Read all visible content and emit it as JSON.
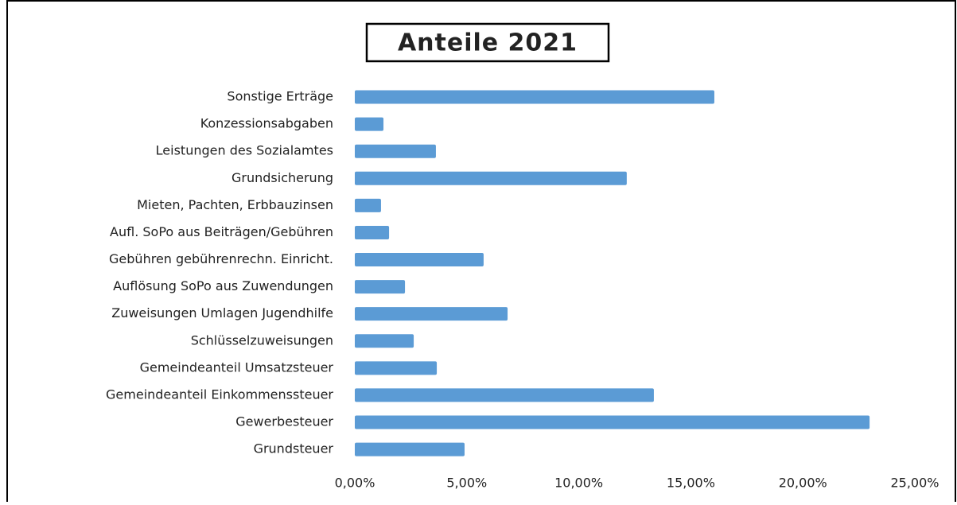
{
  "chart_data": {
    "type": "barh",
    "title": "Anteile 2021",
    "categories": [
      "Sonstige Erträge",
      "Konzessionsabgaben",
      "Leistungen des Sozialamtes",
      "Grundsicherung",
      "Mieten, Pachten, Erbbauzinsen",
      "Aufl. SoPo aus Beiträgen/Gebühren",
      "Gebühren gebührenrechn. Einricht.",
      "Auflösung SoPo aus Zuwendungen",
      "Zuweisungen Umlagen Jugendhilfe",
      "Schlüsselzuweisungen",
      "Gemeindeanteil Umsatzsteuer",
      "Gemeindeanteil Einkommenssteuer",
      "Gewerbesteuer",
      "Grundsteuer"
    ],
    "values": [
      16.05,
      1.28,
      3.62,
      12.14,
      1.17,
      1.53,
      5.75,
      2.24,
      6.82,
      2.63,
      3.66,
      13.35,
      22.98,
      4.9
    ],
    "color": "#5b9bd5",
    "xlim": [
      0,
      25
    ],
    "xticks": [
      {
        "value": 0,
        "label": "0,00%"
      },
      {
        "value": 5,
        "label": "5,00%"
      },
      {
        "value": 10,
        "label": "10,00%"
      },
      {
        "value": 15,
        "label": "15,00%"
      },
      {
        "value": 20,
        "label": "20,00%"
      },
      {
        "value": 25,
        "label": "25,00%"
      }
    ]
  }
}
